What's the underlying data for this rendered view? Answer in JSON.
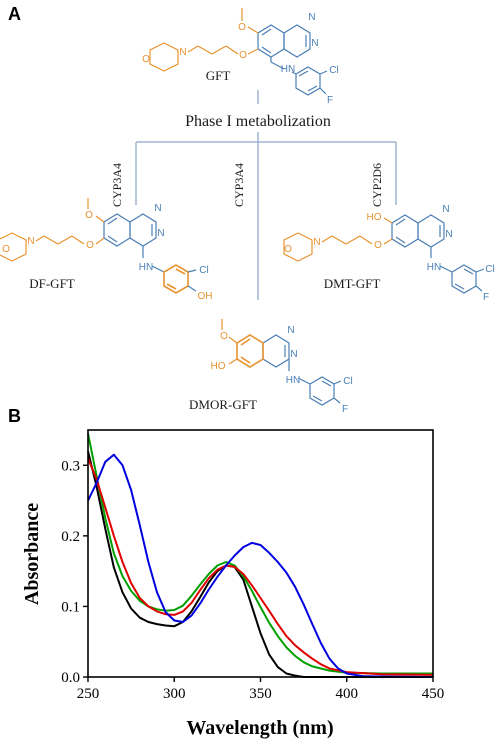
{
  "panel_a": {
    "label": "A",
    "phase_label": "Phase I metabolization",
    "enzymes": [
      "CYP3A4",
      "CYP3A4",
      "CYP2D6"
    ],
    "molecules": {
      "gft": {
        "name": "GFT",
        "atoms": {
          "o_methoxy": "O",
          "o_ether": "O",
          "n_morph": "N",
          "o_morph": "O",
          "n_q1": "N",
          "n_q2": "N",
          "nh": "HN",
          "cl": "Cl",
          "f": "F"
        }
      },
      "df": {
        "name": "DF-GFT",
        "atoms": {
          "o_methoxy": "O",
          "o_ether": "O",
          "n_morph": "N",
          "o_morph": "O",
          "n_q1": "N",
          "n_q2": "N",
          "nh": "HN",
          "cl": "Cl",
          "oh": "OH"
        }
      },
      "dmt": {
        "name": "DMT-GFT",
        "atoms": {
          "ho": "HO",
          "o_ether": "O",
          "n_morph": "N",
          "o_morph": "O",
          "n_q1": "N",
          "n_q2": "N",
          "nh": "HN",
          "cl": "Cl",
          "f": "F"
        }
      },
      "dmor": {
        "name": "DMOR-GFT",
        "atoms": {
          "o_methoxy": "O",
          "ho": "HO",
          "n_q1": "N",
          "n_q2": "N",
          "nh": "HN",
          "cl": "Cl",
          "f": "F"
        }
      }
    },
    "colors": {
      "metabolite_highlight": "#e8922e",
      "structure": "#4a7fb5",
      "arrows": "#9fb4d0",
      "ink": "#1a1a1a"
    }
  },
  "panel_b": {
    "label": "B"
  },
  "chart_data": {
    "type": "line",
    "xlabel": "Wavelength (nm)",
    "ylabel": "Absorbance",
    "xlim": [
      250,
      450
    ],
    "ylim": [
      0,
      0.35
    ],
    "x_ticks": [
      "250",
      "300",
      "350",
      "400",
      "450"
    ],
    "y_ticks": [
      "0.0",
      "0.1",
      "0.2",
      "0.3"
    ],
    "grid": false,
    "legend": "none",
    "series": [
      {
        "color": "#000000",
        "points": [
          [
            250,
            0.32
          ],
          [
            255,
            0.27
          ],
          [
            260,
            0.21
          ],
          [
            265,
            0.155
          ],
          [
            270,
            0.12
          ],
          [
            275,
            0.097
          ],
          [
            280,
            0.084
          ],
          [
            285,
            0.078
          ],
          [
            290,
            0.075
          ],
          [
            295,
            0.073
          ],
          [
            300,
            0.072
          ],
          [
            305,
            0.078
          ],
          [
            310,
            0.093
          ],
          [
            315,
            0.113
          ],
          [
            320,
            0.134
          ],
          [
            325,
            0.15
          ],
          [
            330,
            0.158
          ],
          [
            335,
            0.156
          ],
          [
            340,
            0.138
          ],
          [
            345,
            0.1
          ],
          [
            350,
            0.062
          ],
          [
            355,
            0.032
          ],
          [
            360,
            0.014
          ],
          [
            365,
            0.005
          ],
          [
            370,
            0.002
          ],
          [
            375,
            0.0
          ],
          [
            400,
            0.0
          ],
          [
            450,
            0.0
          ]
        ]
      },
      {
        "color": "#00a000",
        "points": [
          [
            250,
            0.345
          ],
          [
            255,
            0.285
          ],
          [
            260,
            0.225
          ],
          [
            265,
            0.175
          ],
          [
            270,
            0.143
          ],
          [
            275,
            0.122
          ],
          [
            280,
            0.108
          ],
          [
            285,
            0.1
          ],
          [
            290,
            0.096
          ],
          [
            295,
            0.094
          ],
          [
            300,
            0.095
          ],
          [
            305,
            0.101
          ],
          [
            310,
            0.115
          ],
          [
            315,
            0.131
          ],
          [
            320,
            0.146
          ],
          [
            325,
            0.158
          ],
          [
            330,
            0.163
          ],
          [
            335,
            0.158
          ],
          [
            340,
            0.143
          ],
          [
            345,
            0.122
          ],
          [
            350,
            0.099
          ],
          [
            355,
            0.077
          ],
          [
            360,
            0.058
          ],
          [
            365,
            0.042
          ],
          [
            370,
            0.03
          ],
          [
            375,
            0.021
          ],
          [
            380,
            0.015
          ],
          [
            390,
            0.009
          ],
          [
            400,
            0.006
          ],
          [
            420,
            0.005
          ],
          [
            450,
            0.005
          ]
        ]
      },
      {
        "color": "#e00000",
        "points": [
          [
            250,
            0.31
          ],
          [
            255,
            0.28
          ],
          [
            260,
            0.24
          ],
          [
            265,
            0.2
          ],
          [
            270,
            0.163
          ],
          [
            275,
            0.133
          ],
          [
            280,
            0.112
          ],
          [
            285,
            0.1
          ],
          [
            290,
            0.093
          ],
          [
            295,
            0.089
          ],
          [
            300,
            0.088
          ],
          [
            305,
            0.093
          ],
          [
            310,
            0.105
          ],
          [
            315,
            0.123
          ],
          [
            320,
            0.14
          ],
          [
            325,
            0.152
          ],
          [
            330,
            0.158
          ],
          [
            335,
            0.156
          ],
          [
            340,
            0.146
          ],
          [
            345,
            0.13
          ],
          [
            350,
            0.112
          ],
          [
            355,
            0.094
          ],
          [
            360,
            0.075
          ],
          [
            365,
            0.058
          ],
          [
            370,
            0.045
          ],
          [
            375,
            0.035
          ],
          [
            380,
            0.026
          ],
          [
            385,
            0.018
          ],
          [
            390,
            0.012
          ],
          [
            400,
            0.007
          ],
          [
            420,
            0.004
          ],
          [
            450,
            0.003
          ]
        ]
      },
      {
        "color": "#0000e0",
        "points": [
          [
            250,
            0.25
          ],
          [
            255,
            0.275
          ],
          [
            260,
            0.305
          ],
          [
            265,
            0.315
          ],
          [
            270,
            0.3
          ],
          [
            275,
            0.265
          ],
          [
            280,
            0.215
          ],
          [
            285,
            0.163
          ],
          [
            290,
            0.12
          ],
          [
            295,
            0.092
          ],
          [
            300,
            0.08
          ],
          [
            305,
            0.078
          ],
          [
            310,
            0.087
          ],
          [
            315,
            0.104
          ],
          [
            320,
            0.124
          ],
          [
            325,
            0.142
          ],
          [
            330,
            0.158
          ],
          [
            335,
            0.172
          ],
          [
            340,
            0.184
          ],
          [
            345,
            0.19
          ],
          [
            350,
            0.187
          ],
          [
            355,
            0.176
          ],
          [
            360,
            0.163
          ],
          [
            365,
            0.148
          ],
          [
            370,
            0.128
          ],
          [
            375,
            0.103
          ],
          [
            380,
            0.075
          ],
          [
            385,
            0.048
          ],
          [
            390,
            0.026
          ],
          [
            395,
            0.012
          ],
          [
            400,
            0.005
          ],
          [
            410,
            0.001
          ],
          [
            450,
            0.0
          ]
        ]
      }
    ]
  }
}
